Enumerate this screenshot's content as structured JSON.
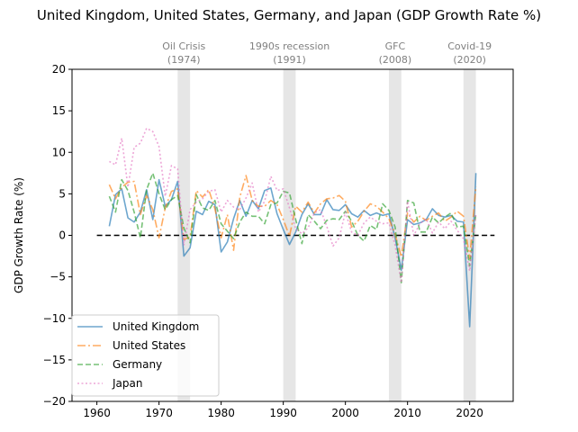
{
  "chart_data": {
    "type": "line",
    "title": "United Kingdom, United States, Germany, and Japan (GDP Growth Rate %)",
    "xlabel": "",
    "ylabel": "GDP Growth Rate (%)",
    "xlim": [
      1956,
      2027
    ],
    "ylim": [
      -20,
      20
    ],
    "xticks": [
      1960,
      1970,
      1980,
      1990,
      2000,
      2010,
      2020
    ],
    "yticks": [
      -20,
      -15,
      -10,
      -5,
      0,
      5,
      10,
      15,
      20
    ],
    "grid": false,
    "legend_position": "lower-left",
    "zero_line": {
      "y": 0,
      "x_from": 1960,
      "x_to": 2024,
      "color": "#000000",
      "style": "dashed"
    },
    "annotations": [
      {
        "label": "Oil Crisis",
        "year": "(1974)",
        "span": [
          1973,
          1975
        ]
      },
      {
        "label": "1990s recession",
        "year": "(1991)",
        "span": [
          1990,
          1992
        ]
      },
      {
        "label": "GFC",
        "year": "(2008)",
        "span": [
          2007,
          2009
        ]
      },
      {
        "label": "Covid-19",
        "year": "(2020)",
        "span": [
          2019,
          2021
        ]
      }
    ],
    "x": [
      1962,
      1963,
      1964,
      1965,
      1966,
      1967,
      1968,
      1969,
      1970,
      1971,
      1972,
      1973,
      1974,
      1975,
      1976,
      1977,
      1978,
      1979,
      1980,
      1981,
      1982,
      1983,
      1984,
      1985,
      1986,
      1987,
      1988,
      1989,
      1990,
      1991,
      1992,
      1993,
      1994,
      1995,
      1996,
      1997,
      1998,
      1999,
      2000,
      2001,
      2002,
      2003,
      2004,
      2005,
      2006,
      2007,
      2008,
      2009,
      2010,
      2011,
      2012,
      2013,
      2014,
      2015,
      2016,
      2017,
      2018,
      2019,
      2020,
      2021
    ],
    "series": [
      {
        "name": "United Kingdom",
        "color": "#1f77b4",
        "dash": "solid",
        "values": [
          1.1,
          4.9,
          5.6,
          2.1,
          1.6,
          2.8,
          5.5,
          1.9,
          6.7,
          3.5,
          4.3,
          6.5,
          -2.5,
          -1.5,
          2.9,
          2.5,
          4.1,
          3.7,
          -2.0,
          -0.8,
          2.0,
          4.2,
          2.3,
          4.2,
          3.2,
          5.4,
          5.7,
          2.6,
          0.7,
          -1.1,
          0.4,
          2.5,
          3.8,
          2.5,
          2.5,
          4.3,
          3.1,
          3.0,
          3.7,
          2.6,
          2.2,
          3.0,
          2.4,
          2.7,
          2.4,
          2.6,
          -0.3,
          -4.2,
          1.9,
          1.3,
          1.5,
          1.9,
          3.2,
          2.4,
          2.2,
          2.4,
          1.7,
          1.6,
          -11.0,
          7.5
        ]
      },
      {
        "name": "United States",
        "color": "#ff7f0e",
        "dash": "dashdot",
        "values": [
          6.1,
          4.4,
          5.8,
          6.4,
          6.5,
          2.5,
          4.8,
          3.1,
          -0.3,
          3.3,
          5.3,
          5.6,
          -0.5,
          -0.2,
          5.4,
          4.6,
          5.5,
          3.2,
          -0.3,
          2.5,
          -1.8,
          4.6,
          7.2,
          4.2,
          3.5,
          3.5,
          4.2,
          3.7,
          1.9,
          -0.1,
          3.5,
          2.8,
          4.0,
          2.7,
          3.8,
          4.4,
          4.5,
          4.8,
          4.1,
          1.0,
          1.7,
          2.9,
          3.8,
          3.5,
          2.8,
          2.0,
          0.1,
          -2.6,
          2.7,
          1.6,
          2.3,
          1.8,
          2.3,
          2.7,
          1.7,
          2.2,
          2.9,
          2.3,
          -2.8,
          5.9
        ]
      },
      {
        "name": "Germany",
        "color": "#2ca02c",
        "dash": "dashed",
        "values": [
          4.7,
          2.8,
          6.7,
          5.4,
          2.8,
          -0.3,
          5.5,
          7.5,
          5.0,
          3.1,
          4.3,
          4.8,
          0.9,
          -0.9,
          4.9,
          3.3,
          3.0,
          4.2,
          1.4,
          0.5,
          -0.4,
          1.6,
          2.8,
          2.3,
          2.3,
          1.4,
          3.7,
          3.9,
          5.3,
          5.1,
          1.9,
          -1.0,
          2.5,
          1.7,
          0.8,
          1.8,
          2.0,
          1.9,
          2.9,
          1.7,
          0.0,
          -0.7,
          1.2,
          0.7,
          3.8,
          3.0,
          1.0,
          -5.7,
          4.2,
          3.9,
          0.4,
          0.4,
          2.2,
          1.5,
          2.2,
          2.7,
          1.0,
          1.1,
          -3.7,
          2.6
        ]
      },
      {
        "name": "Japan",
        "color": "#e377c2",
        "dash": "dotted",
        "values": [
          8.9,
          8.5,
          11.7,
          5.8,
          10.6,
          11.1,
          12.9,
          12.5,
          10.7,
          4.7,
          8.4,
          8.0,
          -1.2,
          3.1,
          4.0,
          4.4,
          5.3,
          5.5,
          2.8,
          4.2,
          3.4,
          3.1,
          4.5,
          6.3,
          2.8,
          4.1,
          7.1,
          5.4,
          5.6,
          3.3,
          0.8,
          0.2,
          0.9,
          2.7,
          3.1,
          1.1,
          -1.3,
          -0.3,
          2.8,
          0.4,
          0.0,
          1.5,
          2.2,
          1.7,
          1.4,
          1.5,
          -1.2,
          -5.7,
          4.1,
          0.0,
          1.4,
          2.0,
          0.3,
          1.6,
          0.8,
          1.7,
          0.6,
          -0.4,
          -4.3,
          2.6
        ]
      }
    ]
  }
}
